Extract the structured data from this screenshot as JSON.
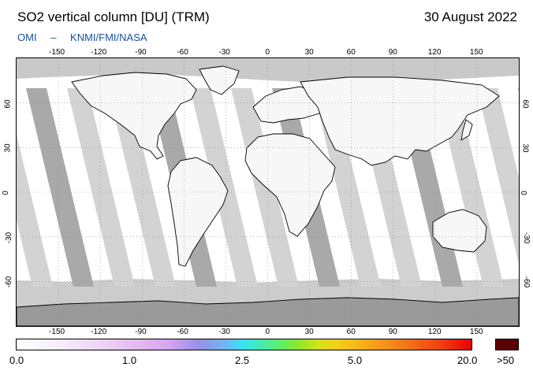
{
  "header": {
    "title": "SO2 vertical column [DU] (TRM)",
    "date": "30 August 2022",
    "credit_instrument": "OMI",
    "credit_sep": "–",
    "credit_orgs": "KNMI/FMI/NASA"
  },
  "map": {
    "projection": "equirectangular",
    "lon_ticks": [
      "-150",
      "-120",
      "-90",
      "-60",
      "-30",
      "0",
      "30",
      "60",
      "90",
      "120",
      "150"
    ],
    "lat_ticks": [
      "60",
      "30",
      "0",
      "-30",
      "-60"
    ],
    "colors": {
      "ocean_fill": "#ffffff",
      "swath_light": "#d3d3d3",
      "swath_dark": "#a9a9a9",
      "polar_fill": "#bdbdbd",
      "antarctica": "#999999",
      "grid": "#888888"
    }
  },
  "colorbar": {
    "labels": [
      "0.0",
      "1.0",
      "2.5",
      "5.0",
      "20.0"
    ],
    "overflow_label": ">50"
  }
}
